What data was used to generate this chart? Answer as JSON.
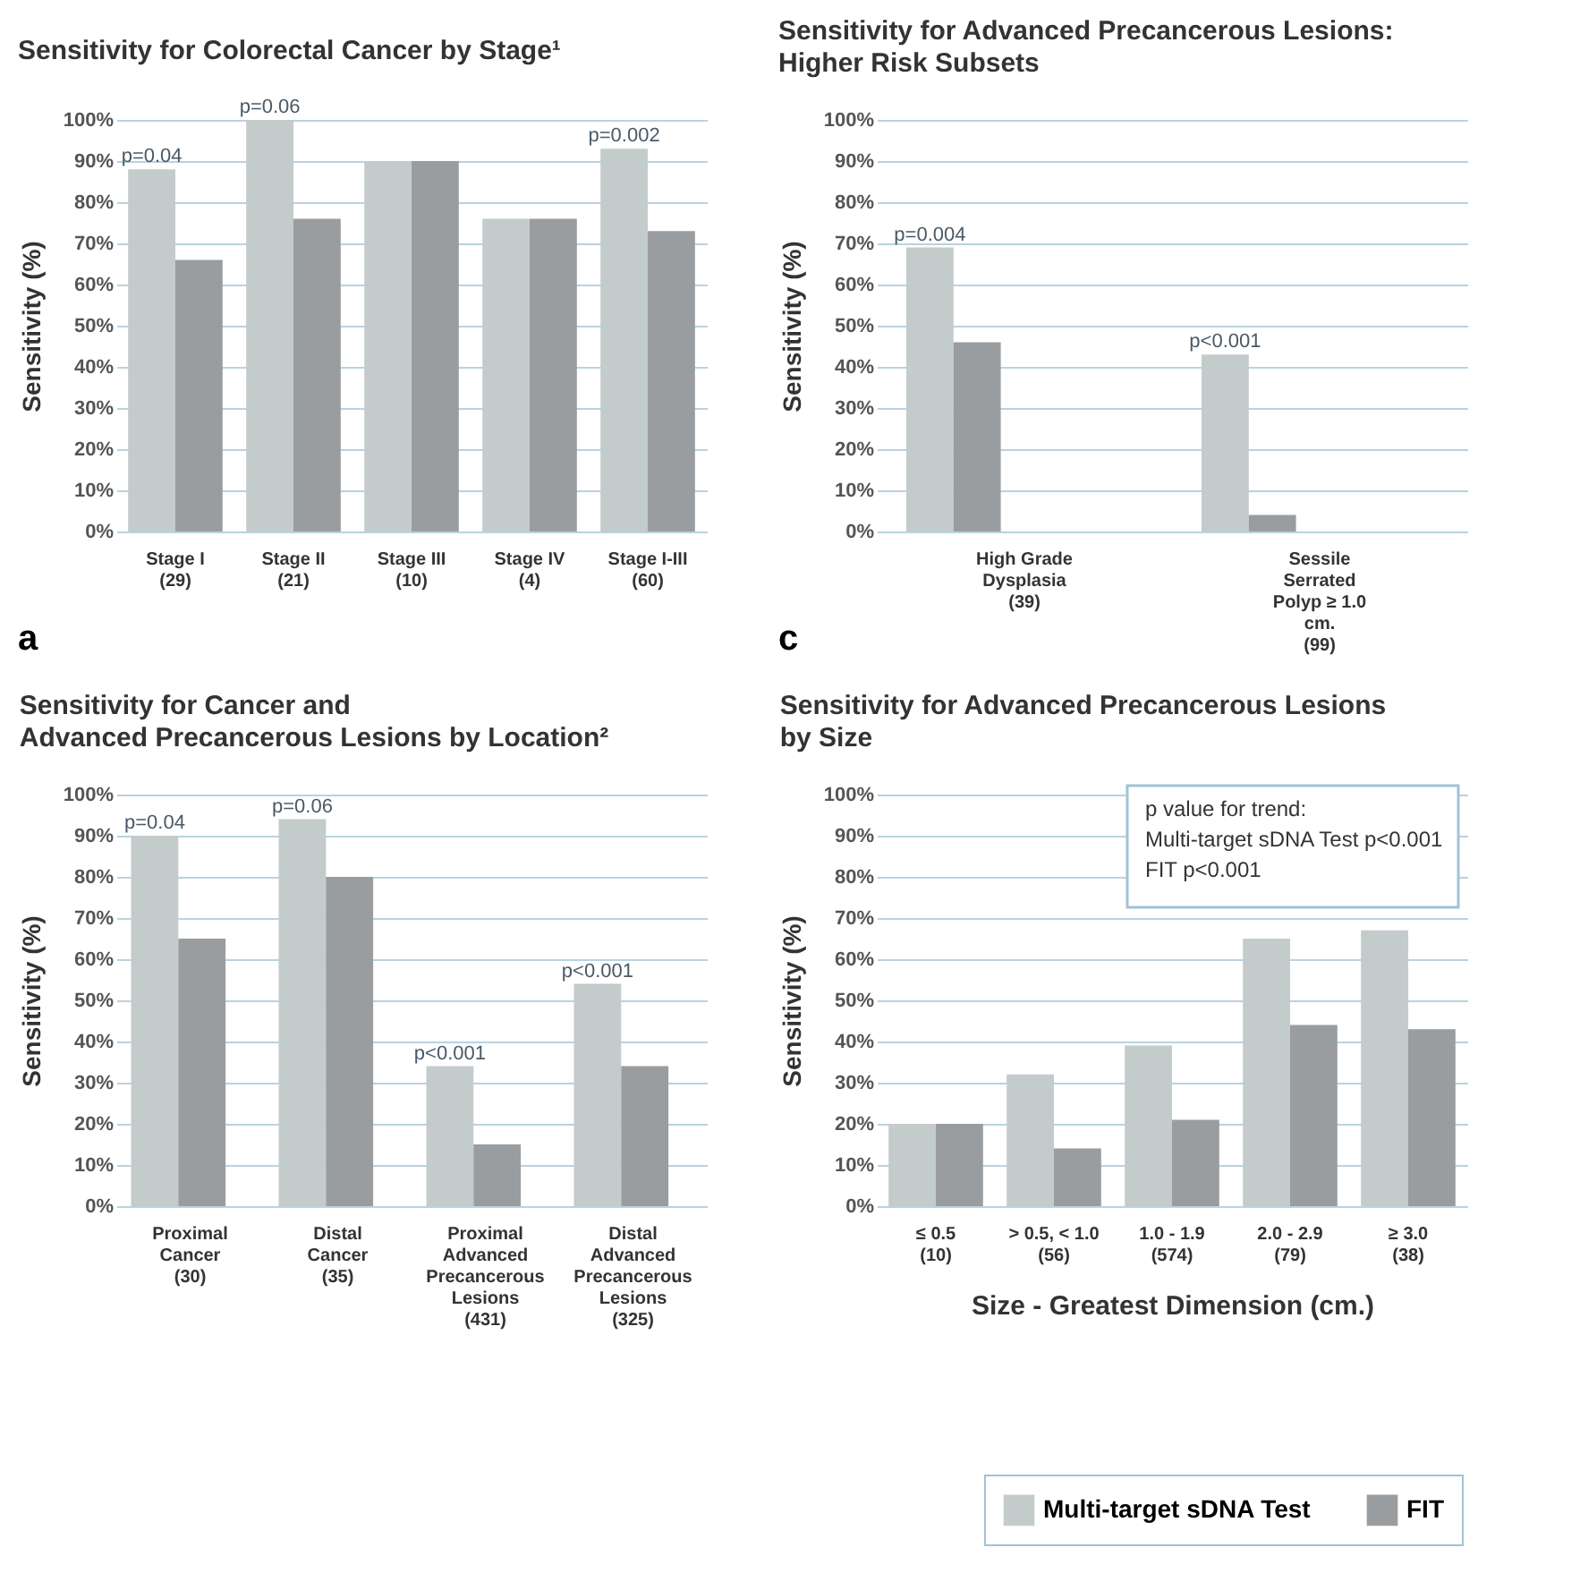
{
  "chart_data": [
    {
      "type": "bar",
      "title": "Sensitivity for Colorectal Cancer by Stage¹",
      "ylabel": "Sensitivity (%)",
      "categories": [
        "Stage I\n(29)",
        "Stage II\n(21)",
        "Stage III\n(10)",
        "Stage IV\n(4)",
        "Stage I-III\n(60)"
      ],
      "series": [
        {
          "color": "#c4cbcb",
          "values": [
            88,
            100,
            90,
            76,
            93
          ]
        },
        {
          "color": "#9a9d9f",
          "values": [
            66,
            76,
            90,
            76,
            73
          ]
        }
      ],
      "ylim": [
        0,
        100
      ],
      "yticks": [
        {
          "value": 0,
          "label": "0%"
        },
        {
          "value": 10,
          "label": "10%"
        },
        {
          "value": 20,
          "label": "20%"
        },
        {
          "value": 30,
          "label": "30%"
        },
        {
          "value": 40,
          "label": "40%"
        },
        {
          "value": 50,
          "label": "50%"
        },
        {
          "value": 60,
          "label": "60%"
        },
        {
          "value": 70,
          "label": "70%"
        },
        {
          "value": 80,
          "label": "80%"
        },
        {
          "value": 90,
          "label": "90%"
        },
        {
          "value": 100,
          "label": "100%"
        }
      ],
      "grid": "y",
      "annotations": [
        {
          "text": "p=0.04",
          "x": "Stage I\n(29)",
          "y": 88
        },
        {
          "text": "p=0.06",
          "x": "Stage II\n(21)",
          "y": 100
        },
        {
          "text": "p=0.002",
          "x": "Stage I-III\n(60)",
          "y": 93
        },
        "a"
      ]
    },
    {
      "type": "bar",
      "title": "Sensitivity for Advanced Precancerous Lesions:\nHigher Risk Subsets",
      "ylabel": "Sensitivity (%)",
      "categories": [
        "High Grade\nDysplasia\n(39)",
        "Sessile Serrated\nPolyp ≥ 1.0 cm.\n(99)"
      ],
      "series": [
        {
          "color": "#c4cbcb",
          "values": [
            69,
            43
          ]
        },
        {
          "color": "#9a9d9f",
          "values": [
            46,
            4
          ]
        }
      ],
      "ylim": [
        0,
        100
      ],
      "yticks": [
        {
          "value": 0,
          "label": "0%"
        },
        {
          "value": 10,
          "label": "10%"
        },
        {
          "value": 20,
          "label": "20%"
        },
        {
          "value": 30,
          "label": "30%"
        },
        {
          "value": 40,
          "label": "40%"
        },
        {
          "value": 50,
          "label": "50%"
        },
        {
          "value": 60,
          "label": "60%"
        },
        {
          "value": 70,
          "label": "70%"
        },
        {
          "value": 80,
          "label": "80%"
        },
        {
          "value": 90,
          "label": "90%"
        },
        {
          "value": 100,
          "label": "100%"
        }
      ],
      "grid": "y",
      "annotations": [
        "p=0.004",
        "p<0.001",
        "c"
      ]
    },
    {
      "type": "bar",
      "title": "Sensitivity for Cancer and\nAdvanced Precancerous Lesions by Location²",
      "ylabel": "Sensitivity (%)",
      "categories": [
        "Proximal\nCancer\n(30)",
        "Distal\nCancer\n(35)",
        "Proximal\nAdvanced\nPrecancerous\nLesions\n(431)",
        "Distal\nAdvanced\nPrecancerous\nLesions\n(325)"
      ],
      "series": [
        {
          "color": "#c4cbcb",
          "values": [
            90,
            94,
            34,
            54
          ]
        },
        {
          "color": "#9a9d9f",
          "values": [
            65,
            80,
            15,
            34
          ]
        }
      ],
      "ylim": [
        0,
        100
      ],
      "yticks": [
        {
          "value": 0,
          "label": "0%"
        },
        {
          "value": 10,
          "label": "10%"
        },
        {
          "value": 20,
          "label": "20%"
        },
        {
          "value": 30,
          "label": "30%"
        },
        {
          "value": 40,
          "label": "40%"
        },
        {
          "value": 50,
          "label": "50%"
        },
        {
          "value": 60,
          "label": "60%"
        },
        {
          "value": 70,
          "label": "70%"
        },
        {
          "value": 80,
          "label": "80%"
        },
        {
          "value": 90,
          "label": "90%"
        },
        {
          "value": 100,
          "label": "100%"
        }
      ],
      "grid": "y",
      "annotations": [
        "p=0.04",
        "p=0.06",
        "p<0.001",
        "p<0.001"
      ]
    },
    {
      "type": "bar",
      "title": "Sensitivity for Advanced Precancerous Lesions\nby Size",
      "ylabel": "Sensitivity (%)",
      "xlabel": "Size - Greatest Dimension (cm.)",
      "categories": [
        "≤ 0.5\n(10)",
        "> 0.5, < 1.0\n(56)",
        "1.0 - 1.9\n(574)",
        "2.0 - 2.9\n(79)",
        "≥ 3.0\n(38)"
      ],
      "series": [
        {
          "name": "Multi-target sDNA Test",
          "color": "#c4cbcb",
          "values": [
            20,
            32,
            39,
            65,
            67
          ]
        },
        {
          "name": "FIT",
          "color": "#9a9d9f",
          "values": [
            20,
            14,
            21,
            44,
            43
          ]
        }
      ],
      "ylim": [
        0,
        100
      ],
      "yticks": [
        {
          "value": 0,
          "label": "0%"
        },
        {
          "value": 10,
          "label": "10%"
        },
        {
          "value": 20,
          "label": "20%"
        },
        {
          "value": 30,
          "label": "30%"
        },
        {
          "value": 40,
          "label": "40%"
        },
        {
          "value": 50,
          "label": "50%"
        },
        {
          "value": 60,
          "label": "60%"
        },
        {
          "value": 70,
          "label": "70%"
        },
        {
          "value": 80,
          "label": "80%"
        },
        {
          "value": 90,
          "label": "90%"
        },
        {
          "value": 100,
          "label": "100%"
        }
      ],
      "grid": "y",
      "legend": "bottom right",
      "annotations": [
        "p value for trend:",
        "Multi-target sDNA Test   p<0.001",
        "FIT   p<0.001"
      ]
    }
  ]
}
